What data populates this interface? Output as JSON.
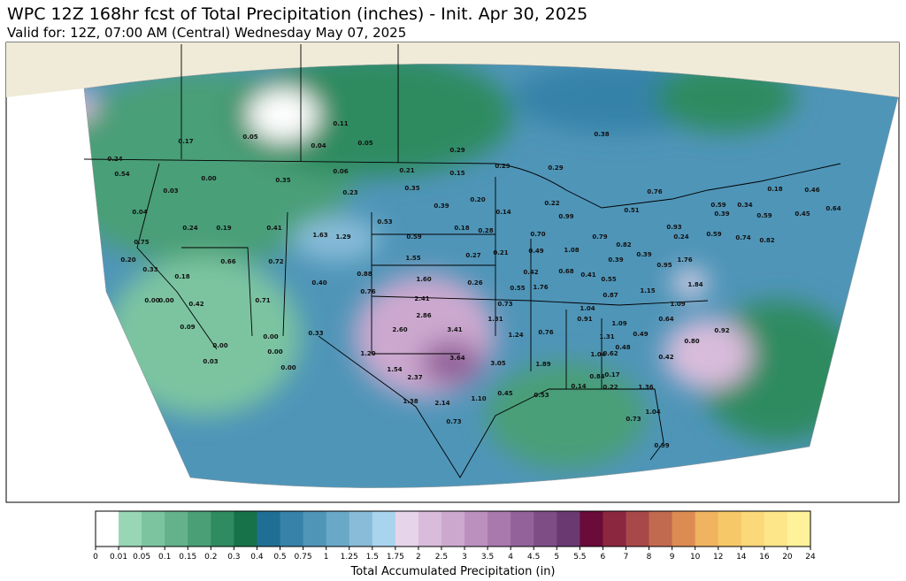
{
  "header": {
    "title": "WPC 12Z 168hr fcst of Total Precipitation (inches) - Init. Apr 30, 2025",
    "subtitle": "Valid for: 12Z, 07:00 AM (Central) Wednesday May 07, 2025"
  },
  "map": {
    "labels": [
      "0.17",
      "0.05",
      "0.11",
      "0.04",
      "0.05",
      "0.29",
      "0.38",
      "0.24",
      "0.54",
      "0.03",
      "0.00",
      "0.35",
      "0.06",
      "0.21",
      "0.15",
      "0.29",
      "0.29",
      "0.23",
      "0.35",
      "0.39",
      "0.20",
      "0.14",
      "0.22",
      "0.76",
      "0.59",
      "0.39",
      "0.34",
      "0.18",
      "0.46",
      "0.45",
      "0.64",
      "0.59",
      "0.04",
      "0.24",
      "0.19",
      "0.41",
      "1.63",
      "1.29",
      "0.53",
      "0.59",
      "0.18",
      "0.28",
      "0.51",
      "0.99",
      "0.70",
      "0.79",
      "0.93",
      "0.24",
      "0.59",
      "0.74",
      "0.82",
      "0.75",
      "0.66",
      "0.72",
      "1.55",
      "0.27",
      "0.21",
      "0.49",
      "1.08",
      "0.82",
      "0.39",
      "0.39",
      "0.95",
      "1.76",
      "0.20",
      "0.33",
      "0.18",
      "0.88",
      "1.60",
      "0.26",
      "0.42",
      "0.68",
      "0.41",
      "0.55",
      "0.40",
      "0.76",
      "2.41",
      "0.55",
      "1.76",
      "1.15",
      "1.84",
      "0.73",
      "0.87",
      "1.04",
      "1.09",
      "0.00",
      "0.00",
      "0.42",
      "0.71",
      "2.86",
      "1.31",
      "0.91",
      "1.09",
      "0.64",
      "0.09",
      "0.00",
      "0.33",
      "2.60",
      "3.41",
      "1.24",
      "0.76",
      "1.31",
      "0.49",
      "0.92",
      "0.00",
      "0.00",
      "0.80",
      "0.48",
      "0.03",
      "0.00",
      "1.20",
      "3.64",
      "3.05",
      "1.89",
      "1.04",
      "0.62",
      "0.42",
      "1.54",
      "0.84",
      "0.17",
      "2.37",
      "0.45",
      "0.53",
      "0.14",
      "0.22",
      "1.36",
      "1.38",
      "2.14",
      "1.10",
      "0.73",
      "0.73",
      "1.04",
      "0.99"
    ]
  },
  "colorbar": {
    "label": "Total Accumulated Precipitation (in)",
    "ticks": [
      0,
      0.01,
      0.05,
      0.1,
      0.15,
      0.2,
      0.3,
      0.4,
      0.5,
      0.75,
      1,
      1.25,
      1.5,
      1.75,
      2,
      2.5,
      3,
      3.5,
      4,
      4.5,
      5,
      5.5,
      6,
      7,
      8,
      9,
      10,
      12,
      14,
      16,
      20,
      24
    ],
    "colors": [
      "#ffffff",
      "#98d6b6",
      "#7cc4a0",
      "#63b28c",
      "#4a9f77",
      "#2f8b60",
      "#17724a",
      "#1f6f94",
      "#3682a8",
      "#4f95b8",
      "#6aa8c8",
      "#88bcd8",
      "#a8d4ee",
      "#e6d4ea",
      "#d9bcdc",
      "#cca8cf",
      "#bb90bf",
      "#a978ad",
      "#93629a",
      "#7e4d86",
      "#6a3972",
      "#6a0b3a",
      "#8b2840",
      "#a94848",
      "#c26a50",
      "#dc8c52",
      "#f0b460",
      "#f7c867",
      "#fbd879",
      "#fde68a",
      "#fff29a"
    ]
  }
}
